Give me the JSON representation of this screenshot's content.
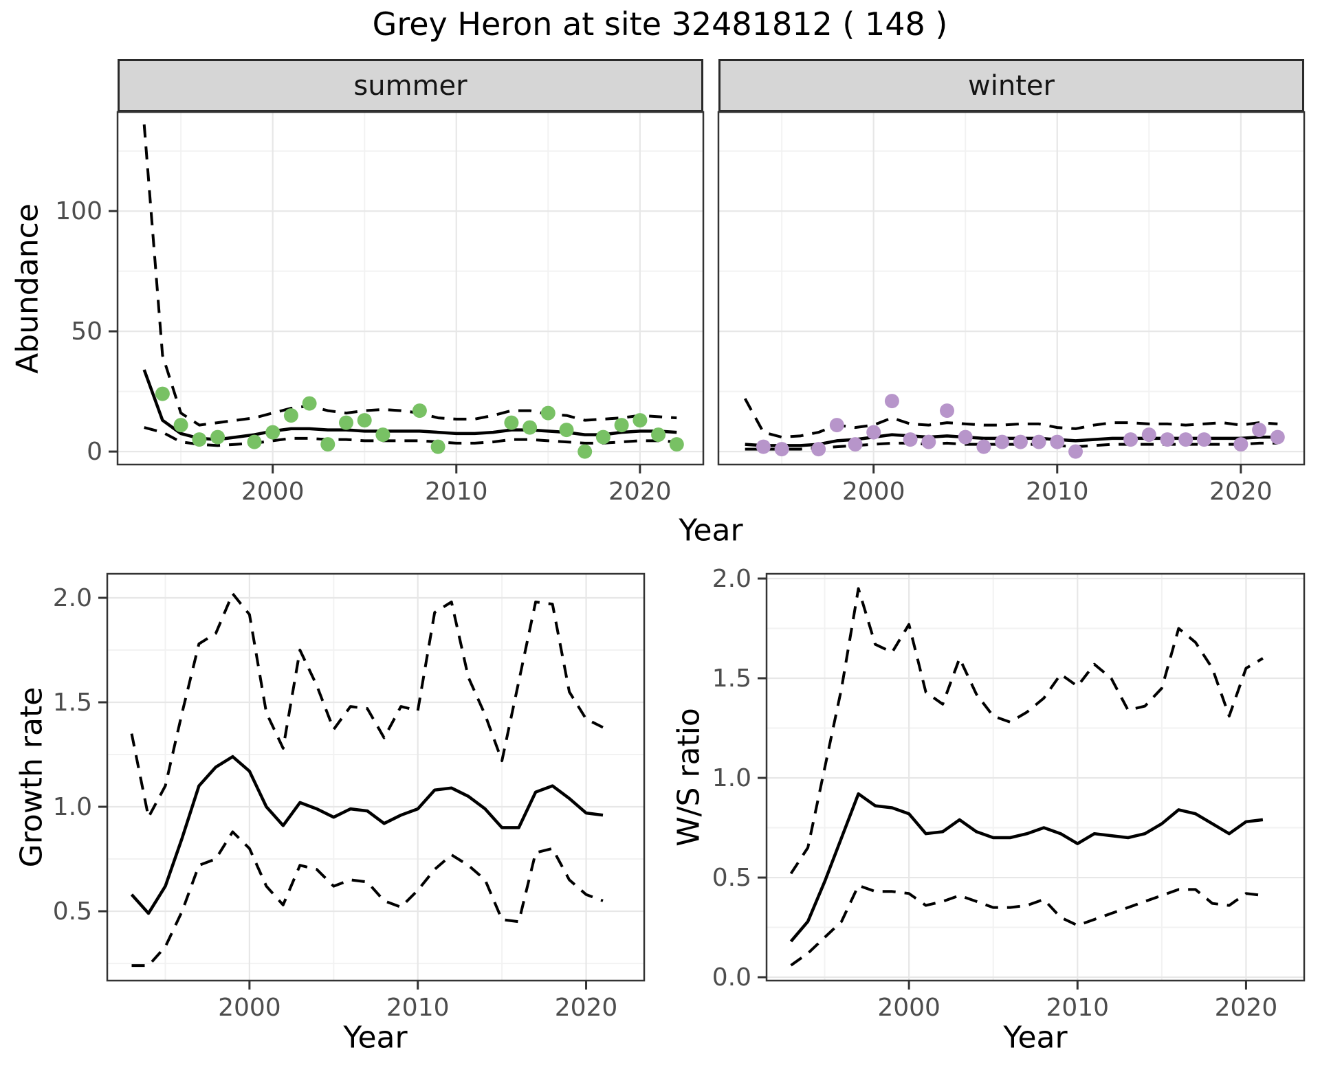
{
  "title": "Grey Heron at site 32481812 ( 148 )",
  "facets": [
    {
      "label": "summer"
    },
    {
      "label": "winter"
    }
  ],
  "axis_titles": {
    "abundance": "Abundance",
    "year": "Year",
    "growth_rate": "Growth rate",
    "ws_ratio": "W/S ratio"
  },
  "colors": {
    "summer_point": "#78c164",
    "winter_point": "#b795ca",
    "line": "#000000",
    "grid_major": "#e7e7e7",
    "grid_minor": "#f2f2f2",
    "panel_border": "#333333",
    "tick_mark": "#333333",
    "tick_text": "#4d4d4d",
    "strip_fill": "#d6d6d6",
    "strip_border": "#2a2a2a",
    "background": "#ffffff"
  },
  "chart_data": [
    {
      "id": "abundance-summer",
      "type": "line",
      "facet": "summer",
      "xlabel": "Year",
      "ylabel": "Abundance",
      "legend": "none",
      "grid": "major+minor",
      "xlim": [
        1991.55,
        2023.45
      ],
      "ylim": [
        -5.4,
        141.2
      ],
      "x_ticks": {
        "values": [
          2000,
          2010,
          2020
        ],
        "labels": [
          "2000",
          "2010",
          "2020"
        ],
        "minor": [
          1995,
          2005,
          2015
        ]
      },
      "y_ticks": {
        "values": [
          0,
          50,
          100
        ],
        "labels": [
          "0",
          "50",
          "100"
        ],
        "minor": [
          25,
          75,
          125
        ]
      },
      "years": [
        1993,
        1994,
        1995,
        1996,
        1997,
        1998,
        1999,
        2000,
        2001,
        2002,
        2003,
        2004,
        2005,
        2006,
        2007,
        2008,
        2009,
        2010,
        2011,
        2012,
        2013,
        2014,
        2015,
        2016,
        2017,
        2018,
        2019,
        2020,
        2021,
        2022
      ],
      "series": [
        {
          "name": "median",
          "line": "solid",
          "values": [
            34,
            13,
            7.5,
            5.5,
            5,
            6,
            7,
            8.5,
            9.5,
            9.5,
            9,
            9,
            8.5,
            8.5,
            8.5,
            8.5,
            8,
            7.5,
            7.5,
            8,
            9,
            9,
            8.5,
            8,
            7,
            7,
            8,
            8.5,
            8.5,
            8
          ]
        },
        {
          "name": "upper-ci",
          "line": "dashed",
          "values": [
            136,
            40,
            16,
            11,
            12,
            13,
            14,
            16,
            18,
            19,
            17,
            16,
            17,
            17.5,
            17,
            16,
            14,
            13.5,
            13.5,
            15,
            17,
            17,
            15.5,
            15,
            13,
            13.5,
            14,
            15,
            14.5,
            14
          ]
        },
        {
          "name": "lower-ci",
          "line": "dashed",
          "values": [
            10,
            8,
            4,
            3,
            2.5,
            3,
            3.5,
            4.5,
            5.5,
            5.5,
            5,
            5,
            4.5,
            4.5,
            4.5,
            4.5,
            4,
            3.5,
            3.5,
            4,
            5,
            5,
            4.5,
            4,
            3.5,
            3.5,
            4,
            4.5,
            4.5,
            4
          ]
        }
      ],
      "points": {
        "name": "observed-summer-abundance",
        "color_key": "summer_point",
        "years": [
          1994,
          1995,
          1996,
          1997,
          1999,
          2000,
          2001,
          2002,
          2003,
          2004,
          2005,
          2006,
          2008,
          2009,
          2013,
          2014,
          2015,
          2016,
          2017,
          2018,
          2019,
          2020,
          2021,
          2022
        ],
        "values": [
          24,
          11,
          5,
          6,
          4,
          8,
          15,
          20,
          3,
          12,
          13,
          7,
          17,
          2,
          12,
          10,
          16,
          9,
          0,
          6,
          11,
          13,
          7,
          3
        ]
      }
    },
    {
      "id": "abundance-winter",
      "type": "line",
      "facet": "winter",
      "xlabel": "Year",
      "ylabel": "Abundance",
      "legend": "none",
      "grid": "major+minor",
      "xlim": [
        1991.55,
        2023.45
      ],
      "ylim": [
        -5.4,
        141.2
      ],
      "x_ticks": {
        "values": [
          2000,
          2010,
          2020
        ],
        "labels": [
          "2000",
          "2010",
          "2020"
        ],
        "minor": [
          1995,
          2005,
          2015
        ]
      },
      "y_ticks": {
        "values": [
          0,
          50,
          100
        ],
        "labels": [],
        "minor": [
          25,
          75,
          125
        ]
      },
      "years": [
        1993,
        1994,
        1995,
        1996,
        1997,
        1998,
        1999,
        2000,
        2001,
        2002,
        2003,
        2004,
        2005,
        2006,
        2007,
        2008,
        2009,
        2010,
        2011,
        2012,
        2013,
        2014,
        2015,
        2016,
        2017,
        2018,
        2019,
        2020,
        2021,
        2022
      ],
      "series": [
        {
          "name": "median",
          "line": "solid",
          "values": [
            3,
            2.5,
            2.5,
            2.5,
            3,
            4.5,
            5,
            6,
            7,
            6.5,
            6,
            6.5,
            6,
            5.5,
            5.5,
            5.5,
            5.5,
            5,
            4.5,
            5,
            5.5,
            5.5,
            5.5,
            5.5,
            5.5,
            5.5,
            5.5,
            5.5,
            6,
            6
          ]
        },
        {
          "name": "upper-ci",
          "line": "dashed",
          "values": [
            22,
            8,
            6,
            6.5,
            8,
            11,
            10,
            11,
            14,
            11.5,
            11,
            12,
            11.5,
            11,
            11,
            11.5,
            11.5,
            10,
            9.5,
            11,
            12,
            12,
            11.5,
            11.5,
            11,
            11.5,
            12,
            11,
            12,
            11.5
          ]
        },
        {
          "name": "lower-ci",
          "line": "dashed",
          "values": [
            1,
            1,
            1,
            1,
            1.5,
            2,
            2.5,
            3,
            3.5,
            3.5,
            3,
            3.5,
            3,
            3,
            3,
            3,
            3,
            2.5,
            2,
            2.5,
            3,
            3,
            3,
            3,
            3,
            3,
            3,
            3,
            3.5,
            3.5
          ]
        }
      ],
      "points": {
        "name": "observed-winter-abundance",
        "color_key": "winter_point",
        "years": [
          1994,
          1995,
          1997,
          1998,
          1999,
          2000,
          2001,
          2002,
          2003,
          2004,
          2005,
          2006,
          2007,
          2008,
          2009,
          2010,
          2011,
          2014,
          2015,
          2016,
          2017,
          2018,
          2020,
          2021,
          2022
        ],
        "values": [
          2,
          1,
          1,
          11,
          3,
          8,
          21,
          5,
          4,
          17,
          6,
          2,
          4,
          4,
          4,
          4,
          0,
          5,
          7,
          5,
          5,
          5,
          3,
          9,
          6
        ]
      }
    },
    {
      "id": "growth-rate",
      "type": "line",
      "xlabel": "Year",
      "ylabel": "Growth rate",
      "legend": "none",
      "grid": "major+minor",
      "xlim": [
        1991.55,
        2023.45
      ],
      "ylim": [
        0.168,
        2.115
      ],
      "x_ticks": {
        "values": [
          2000,
          2010,
          2020
        ],
        "labels": [
          "2000",
          "2010",
          "2020"
        ],
        "minor": [
          1995,
          2005,
          2015
        ]
      },
      "y_ticks": {
        "values": [
          0.5,
          1.0,
          1.5,
          2.0
        ],
        "labels": [
          "0.5",
          "1.0",
          "1.5",
          "2.0"
        ],
        "minor": [
          0.25,
          0.75,
          1.25,
          1.75
        ]
      },
      "years": [
        1993,
        1994,
        1995,
        1996,
        1997,
        1998,
        1999,
        2000,
        2001,
        2002,
        2003,
        2004,
        2005,
        2006,
        2007,
        2008,
        2009,
        2010,
        2011,
        2012,
        2013,
        2014,
        2015,
        2016,
        2017,
        2018,
        2019,
        2020,
        2021
      ],
      "series": [
        {
          "name": "median",
          "line": "solid",
          "values": [
            0.58,
            0.49,
            0.62,
            0.85,
            1.1,
            1.19,
            1.24,
            1.17,
            1.0,
            0.91,
            1.02,
            0.99,
            0.95,
            0.99,
            0.98,
            0.92,
            0.96,
            0.99,
            1.08,
            1.09,
            1.05,
            0.99,
            0.9,
            0.9,
            1.07,
            1.1,
            1.04,
            0.97,
            0.96
          ]
        },
        {
          "name": "upper-ci",
          "line": "dashed",
          "values": [
            1.35,
            0.95,
            1.1,
            1.45,
            1.78,
            1.83,
            2.02,
            1.92,
            1.45,
            1.28,
            1.75,
            1.58,
            1.37,
            1.48,
            1.47,
            1.33,
            1.48,
            1.46,
            1.93,
            1.98,
            1.62,
            1.44,
            1.22,
            1.6,
            1.98,
            1.97,
            1.55,
            1.42,
            1.38
          ]
        },
        {
          "name": "lower-ci",
          "line": "dashed",
          "values": [
            0.24,
            0.24,
            0.33,
            0.5,
            0.72,
            0.75,
            0.88,
            0.8,
            0.62,
            0.53,
            0.72,
            0.7,
            0.62,
            0.65,
            0.64,
            0.55,
            0.52,
            0.6,
            0.7,
            0.77,
            0.72,
            0.65,
            0.46,
            0.45,
            0.78,
            0.8,
            0.65,
            0.58,
            0.55
          ]
        }
      ]
    },
    {
      "id": "ws-ratio",
      "type": "line",
      "xlabel": "Year",
      "ylabel": "W/S ratio",
      "legend": "none",
      "grid": "major+minor",
      "xlim": [
        1991.55,
        2023.45
      ],
      "ylim": [
        -0.017,
        2.024
      ],
      "x_ticks": {
        "values": [
          2000,
          2010,
          2020
        ],
        "labels": [
          "2000",
          "2010",
          "2020"
        ],
        "minor": [
          1995,
          2005,
          2015
        ]
      },
      "y_ticks": {
        "values": [
          0.0,
          0.5,
          1.0,
          1.5,
          2.0
        ],
        "labels": [
          "0.0",
          "0.5",
          "1.0",
          "1.5",
          "2.0"
        ],
        "minor": [
          0.25,
          0.75,
          1.25,
          1.75
        ]
      },
      "years": [
        1993,
        1994,
        1995,
        1996,
        1997,
        1998,
        1999,
        2000,
        2001,
        2002,
        2003,
        2004,
        2005,
        2006,
        2007,
        2008,
        2009,
        2010,
        2011,
        2012,
        2013,
        2014,
        2015,
        2016,
        2017,
        2018,
        2019,
        2020,
        2021
      ],
      "series": [
        {
          "name": "median",
          "line": "solid",
          "values": [
            0.18,
            0.28,
            0.48,
            0.7,
            0.92,
            0.86,
            0.85,
            0.82,
            0.72,
            0.73,
            0.79,
            0.73,
            0.7,
            0.7,
            0.72,
            0.75,
            0.72,
            0.67,
            0.72,
            0.71,
            0.7,
            0.72,
            0.77,
            0.84,
            0.82,
            0.77,
            0.72,
            0.78,
            0.79
          ]
        },
        {
          "name": "upper-ci",
          "line": "dashed",
          "values": [
            0.52,
            0.65,
            1.05,
            1.45,
            1.95,
            1.67,
            1.63,
            1.77,
            1.43,
            1.37,
            1.6,
            1.42,
            1.31,
            1.28,
            1.33,
            1.4,
            1.52,
            1.46,
            1.57,
            1.5,
            1.34,
            1.36,
            1.45,
            1.75,
            1.68,
            1.55,
            1.31,
            1.55,
            1.6
          ]
        },
        {
          "name": "lower-ci",
          "line": "dashed",
          "values": [
            0.06,
            0.12,
            0.2,
            0.28,
            0.46,
            0.43,
            0.43,
            0.42,
            0.36,
            0.38,
            0.41,
            0.38,
            0.35,
            0.35,
            0.36,
            0.39,
            0.3,
            0.26,
            0.29,
            0.32,
            0.35,
            0.38,
            0.41,
            0.44,
            0.44,
            0.37,
            0.36,
            0.42,
            0.41
          ]
        }
      ]
    }
  ]
}
